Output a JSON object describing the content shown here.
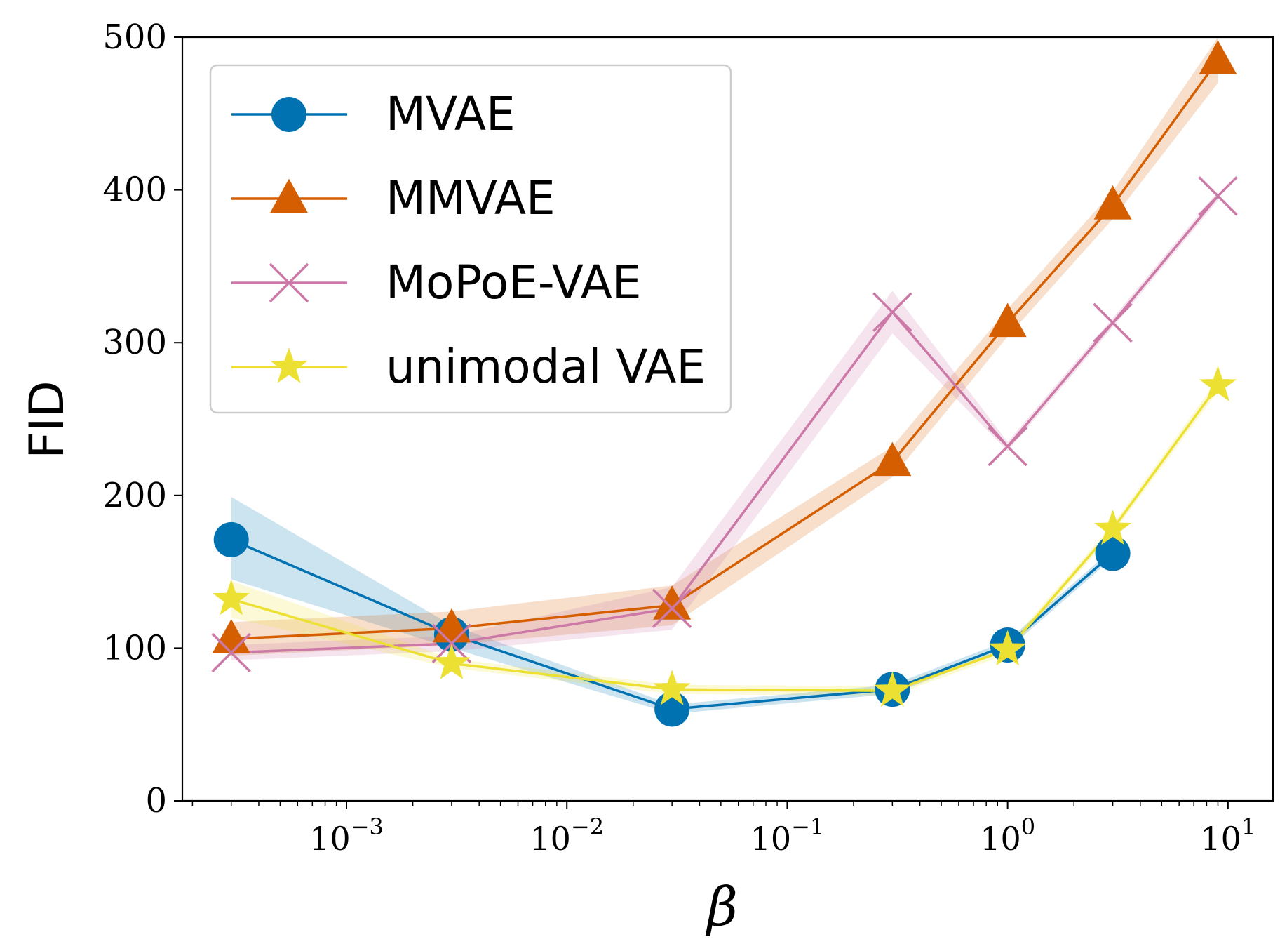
{
  "chart_data": {
    "type": "line",
    "title": "",
    "xlabel": "β",
    "ylabel": "FID",
    "xscale": "log",
    "xlim": [
      0.00018,
      16
    ],
    "ylim": [
      0,
      500
    ],
    "yticks": [
      0,
      100,
      200,
      300,
      400,
      500
    ],
    "xticks": [
      {
        "value": 0.001,
        "base": "10",
        "exp": "−3"
      },
      {
        "value": 0.01,
        "base": "10",
        "exp": "−2"
      },
      {
        "value": 0.1,
        "base": "10",
        "exp": "−1"
      },
      {
        "value": 1,
        "base": "10",
        "exp": "0"
      },
      {
        "value": 10,
        "base": "10",
        "exp": "1"
      }
    ],
    "x": [
      0.0003,
      0.003,
      0.03,
      0.3,
      1,
      3,
      9
    ],
    "series": [
      {
        "name": "MVAE",
        "color": "#0072b2",
        "marker": "circle",
        "values": [
          171,
          109,
          60,
          73,
          102,
          162,
          null
        ],
        "lower": [
          145,
          100,
          57,
          70,
          99,
          159,
          null
        ],
        "upper": [
          199,
          115,
          63,
          76,
          105,
          165,
          null
        ]
      },
      {
        "name": "MMVAE",
        "color": "#d55e00",
        "marker": "triangle",
        "values": [
          106,
          113,
          128,
          222,
          313,
          390,
          485
        ],
        "lower": [
          95,
          102,
          115,
          212,
          304,
          381,
          470
        ],
        "upper": [
          117,
          124,
          141,
          232,
          322,
          399,
          500
        ]
      },
      {
        "name": "MoPoE-VAE",
        "color": "#cc79a7",
        "marker": "x",
        "values": [
          97,
          103,
          126,
          320,
          232,
          313,
          396
        ],
        "lower": [
          92,
          98,
          112,
          306,
          229,
          310,
          393
        ],
        "upper": [
          102,
          108,
          140,
          334,
          235,
          316,
          399
        ]
      },
      {
        "name": "unimodal VAE",
        "color": "#ece133",
        "marker": "star",
        "values": [
          132,
          90,
          73,
          72,
          99,
          178,
          272
        ],
        "lower": [
          120,
          87,
          70,
          69,
          96,
          175,
          268
        ],
        "upper": [
          144,
          93,
          76,
          75,
          102,
          181,
          276
        ]
      }
    ],
    "legend": {
      "placement": "top-left"
    },
    "grid": false
  }
}
